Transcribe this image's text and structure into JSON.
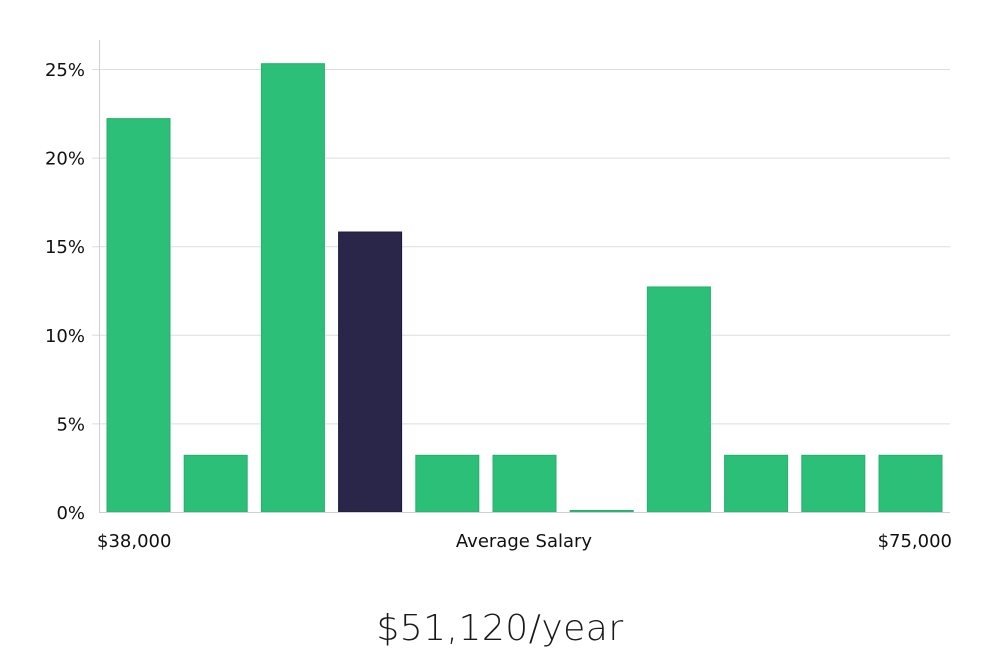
{
  "chart_data": {
    "type": "bar",
    "title": "",
    "xlabel": "Average Salary",
    "ylabel": "",
    "x_min_label": "$38,000",
    "x_max_label": "$75,000",
    "categories": [
      "bin1",
      "bin2",
      "bin3",
      "bin4",
      "bin5",
      "bin6",
      "bin7",
      "bin8",
      "bin9",
      "bin10",
      "bin11"
    ],
    "values": [
      22.2,
      3.2,
      25.3,
      15.8,
      3.2,
      3.2,
      0.0,
      12.7,
      3.2,
      3.2,
      3.2
    ],
    "highlight_index": 3,
    "yticks": [
      "0%",
      "5%",
      "10%",
      "15%",
      "20%",
      "25%"
    ],
    "ylim": [
      0,
      26.6
    ],
    "grid": true,
    "colors": {
      "bar": "#2bbf78",
      "highlight": "#29264a",
      "grid": "#dddddd"
    }
  },
  "summary": {
    "salary_text": "$51,120/year"
  }
}
